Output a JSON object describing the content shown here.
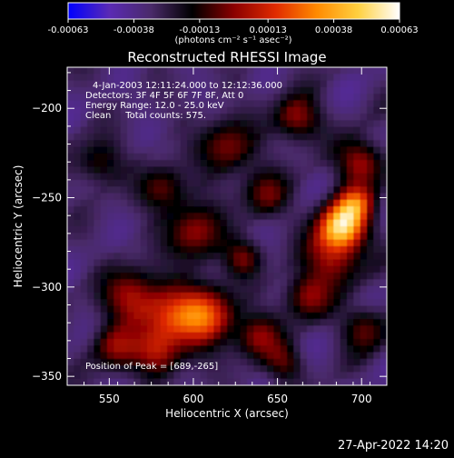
{
  "colors": {
    "background": "#000000",
    "text": "#ffffff"
  },
  "colorbar": {
    "tick_labels": [
      "-0.00063",
      "-0.00038",
      "-0.00013",
      "0.00013",
      "0.00038",
      "0.00063"
    ],
    "tick_values": [
      -0.00063,
      -0.00038,
      -0.00013,
      0.00013,
      0.00038,
      0.00063
    ],
    "range": [
      -0.00063,
      0.00063
    ],
    "units_label": "(photons cm⁻² s⁻¹ asec⁻²)",
    "stops": [
      "#0000ff",
      "#5a2ab4",
      "#4a2a6a",
      "#000000",
      "#8a0000",
      "#e02a00",
      "#ff8a00",
      "#ffd040",
      "#ffffff"
    ]
  },
  "chart_data": {
    "type": "heatmap",
    "title": "Reconstructed RHESSI Image",
    "xlabel": "Heliocentric X (arcsec)",
    "ylabel": "Heliocentric Y (arcsec)",
    "xlim": [
      525,
      715
    ],
    "ylim": [
      -355,
      -177
    ],
    "x_ticks": [
      550,
      600,
      650,
      700
    ],
    "x_tick_labels": [
      "550",
      "600",
      "650",
      "700"
    ],
    "y_ticks": [
      -350,
      -300,
      -250,
      -200
    ],
    "y_tick_labels": [
      "−350",
      "−300",
      "−250",
      "−200"
    ],
    "annotations": [
      "4-Jan-2003 12:11:24.000 to 12:12:36.000",
      "Detectors: 3F 4F 5F 6F 7F 8F, Att 0",
      "Energy Range: 12.0 - 25.0 keV",
      "Clean     Total counts: 575.",
      "Position of Peak = [689,-265]"
    ],
    "peak": {
      "x": 689,
      "y": -265
    }
  },
  "footer": {
    "timestamp": "27-Apr-2022 14:20"
  }
}
